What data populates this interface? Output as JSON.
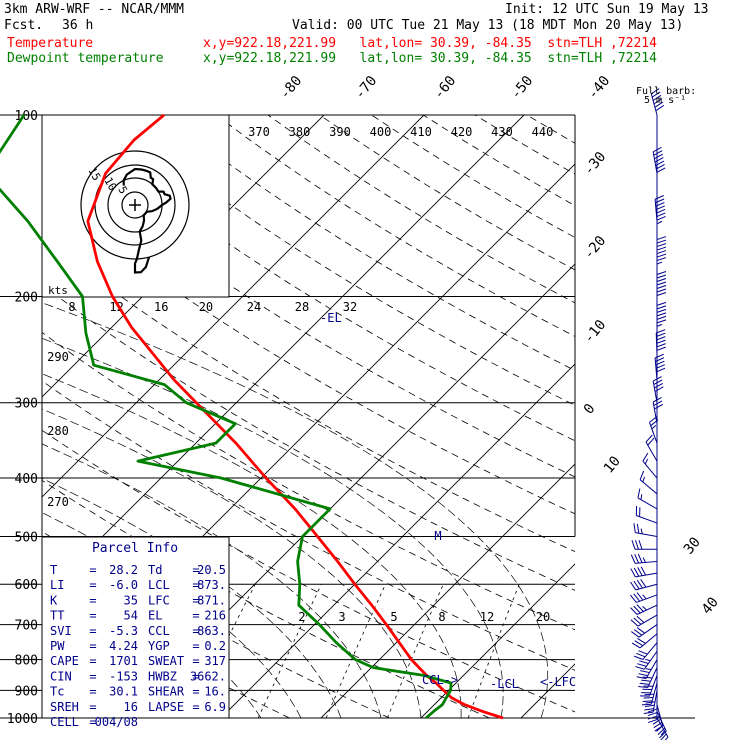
{
  "header": {
    "model": "3km ARW-WRF -- NCAR/MMM",
    "init": "Init: 12 UTC Sun 19 May 13",
    "fcst_label": "Fcst.",
    "fcst_value": "36 h",
    "valid": "Valid: 00 UTC Tue 21 May 13 (18 MDT Mon 20 May 13)",
    "temp_label": "Temperature",
    "dew_label": "Dewpoint temperature",
    "loc": "x,y=922.18,221.99   lat,lon= 30.39, -84.35  stn=TLH ,72214"
  },
  "colors": {
    "temperature": "#ff0000",
    "dewpoint": "#008000",
    "barbs": "#00008b",
    "grid": "#000000"
  },
  "barb_legend": {
    "line1": "Full barb:",
    "line2": "5 m s⁻¹"
  },
  "hodograph": {
    "units": "kts",
    "ring_labels": [
      "15",
      "10",
      "5"
    ]
  },
  "parcel_info": {
    "title": "Parcel Info",
    "rows": [
      [
        "T",
        "=",
        "28.2",
        "Td",
        "=",
        "20.5"
      ],
      [
        "LI",
        "=",
        "-6.0",
        "LCL",
        "=",
        "873."
      ],
      [
        "K",
        "=",
        "35",
        "LFC",
        "=",
        "871."
      ],
      [
        "TT",
        "=",
        "54",
        "EL",
        "=",
        "216"
      ],
      [
        "SVI",
        "=",
        "-5.3",
        "CCL",
        "=",
        "863."
      ],
      [
        "PW",
        "=",
        "4.24",
        "YGP",
        "=",
        "0.2"
      ],
      [
        "CAPE",
        "=",
        "1701",
        "SWEAT",
        "=",
        "317"
      ],
      [
        "CIN",
        "=",
        "-153",
        "HWBZ",
        "=",
        "3662."
      ],
      [
        "Tc",
        "=",
        "30.1",
        "SHEAR",
        "=",
        "16."
      ],
      [
        "SREH",
        "=",
        "16",
        "LAPSE",
        "=",
        "6.9"
      ],
      [
        "CELL",
        "=",
        "004/08",
        "",
        "",
        ""
      ]
    ]
  },
  "chart_data": {
    "type": "line",
    "title": "",
    "pressure_levels": [
      100,
      200,
      300,
      400,
      500,
      600,
      700,
      800,
      900,
      1000
    ],
    "pressure_labels": [
      "100",
      "200",
      "300",
      "400",
      "500",
      "600",
      "700",
      "800",
      "900",
      "1000"
    ],
    "isotherm_labels": [
      "-80",
      "-70",
      "-60",
      "-50",
      "-40",
      "-30",
      "-20",
      "-10",
      "0",
      "10",
      "30",
      "40"
    ],
    "theta_labels": [
      "370",
      "380",
      "390",
      "400",
      "410",
      "420",
      "430",
      "440"
    ],
    "theta_side_labels": [
      "290",
      "280",
      "270"
    ],
    "mixing_ratio_labels": [
      "2",
      "3",
      "5",
      "8",
      "12",
      "20"
    ],
    "hodo_speed_labels": [
      "8",
      "12",
      "16",
      "20",
      "24",
      "28",
      "32"
    ],
    "markers": {
      "el": "-EL",
      "ccl": "CCL->",
      "lcl": "-LCL",
      "lfc": "<-LFC",
      "m": "M"
    },
    "series": [
      {
        "name": "Temperature",
        "key": "temperature",
        "points": [
          [
            1000,
            28.2
          ],
          [
            975,
            25.5
          ],
          [
            950,
            23
          ],
          [
            925,
            21
          ],
          [
            900,
            19.5
          ],
          [
            875,
            18
          ],
          [
            850,
            16.3
          ],
          [
            800,
            13.2
          ],
          [
            750,
            10.3
          ],
          [
            700,
            7.2
          ],
          [
            650,
            3.8
          ],
          [
            600,
            0
          ],
          [
            550,
            -4
          ],
          [
            500,
            -8.5
          ],
          [
            450,
            -13.5
          ],
          [
            400,
            -19.5
          ],
          [
            350,
            -26
          ],
          [
            300,
            -34
          ],
          [
            275,
            -38.5
          ],
          [
            250,
            -43
          ],
          [
            225,
            -48
          ],
          [
            200,
            -53
          ],
          [
            175,
            -58
          ],
          [
            150,
            -63
          ],
          [
            125,
            -66
          ],
          [
            110,
            -66.5
          ],
          [
            100,
            -66
          ]
        ]
      },
      {
        "name": "Dewpoint temperature",
        "key": "dewpoint",
        "points": [
          [
            1000,
            20.5
          ],
          [
            975,
            20.6
          ],
          [
            950,
            20.8
          ],
          [
            925,
            20.5
          ],
          [
            900,
            20.2
          ],
          [
            875,
            19.5
          ],
          [
            850,
            16
          ],
          [
            825,
            10.2
          ],
          [
            800,
            7.6
          ],
          [
            750,
            4
          ],
          [
            700,
            0.5
          ],
          [
            650,
            -3.5
          ],
          [
            600,
            -5.5
          ],
          [
            550,
            -8
          ],
          [
            500,
            -10
          ],
          [
            450,
            -10
          ],
          [
            400,
            -24
          ],
          [
            375,
            -34
          ],
          [
            350,
            -28
          ],
          [
            325,
            -28
          ],
          [
            300,
            -35
          ],
          [
            280,
            -39
          ],
          [
            260,
            -48
          ],
          [
            230,
            -52
          ],
          [
            200,
            -56
          ],
          [
            175,
            -62
          ],
          [
            150,
            -69
          ],
          [
            125,
            -78
          ],
          [
            100,
            -80
          ]
        ]
      }
    ],
    "winds": [
      [
        1000,
        5,
        150
      ],
      [
        975,
        6,
        155
      ],
      [
        950,
        7,
        165
      ],
      [
        925,
        8,
        180
      ],
      [
        900,
        8,
        190
      ],
      [
        875,
        8,
        195
      ],
      [
        850,
        8,
        200
      ],
      [
        825,
        8,
        205
      ],
      [
        800,
        7,
        210
      ],
      [
        775,
        7,
        215
      ],
      [
        750,
        6,
        220
      ],
      [
        725,
        6,
        230
      ],
      [
        700,
        6,
        235
      ],
      [
        675,
        6,
        240
      ],
      [
        650,
        7,
        245
      ],
      [
        625,
        7,
        250
      ],
      [
        600,
        8,
        255
      ],
      [
        575,
        8,
        260
      ],
      [
        550,
        7,
        265
      ],
      [
        525,
        6,
        270
      ],
      [
        500,
        5,
        280
      ],
      [
        475,
        4,
        290
      ],
      [
        450,
        3,
        300
      ],
      [
        425,
        3,
        310
      ],
      [
        400,
        3,
        320
      ],
      [
        375,
        4,
        330
      ],
      [
        350,
        5,
        340
      ],
      [
        325,
        6,
        350
      ],
      [
        300,
        8,
        350
      ],
      [
        275,
        10,
        355
      ],
      [
        250,
        12,
        358
      ],
      [
        225,
        13,
        360
      ],
      [
        200,
        14,
        360
      ],
      [
        175,
        15,
        360
      ],
      [
        150,
        15,
        355
      ],
      [
        125,
        14,
        350
      ],
      [
        100,
        12,
        345
      ]
    ]
  }
}
